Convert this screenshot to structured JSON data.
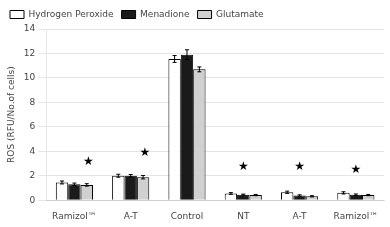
{
  "chart_data": {
    "type": "bar",
    "categories": [
      "Ramizol™",
      "A-T",
      "Control",
      "NT",
      "A-T",
      "Ramizol™"
    ],
    "series": [
      {
        "name": "Hydrogen Peroxide",
        "color": "white",
        "values": [
          1.45,
          2.0,
          11.55,
          0.55,
          0.65,
          0.6
        ],
        "errors": [
          0.12,
          0.12,
          0.28,
          0.07,
          0.09,
          0.09
        ]
      },
      {
        "name": "Menadione",
        "color": "#1a1a1a",
        "values": [
          1.3,
          2.0,
          11.9,
          0.45,
          0.38,
          0.45
        ],
        "errors": [
          0.1,
          0.1,
          0.4,
          0.05,
          0.06,
          0.06
        ]
      },
      {
        "name": "Glutamate",
        "color": "#d0d0d0",
        "values": [
          1.25,
          1.88,
          10.7,
          0.42,
          0.32,
          0.42
        ],
        "errors": [
          0.1,
          0.14,
          0.2,
          0.05,
          0.05,
          0.05
        ]
      }
    ],
    "ylabel": "ROS (RFU/No.of cells)",
    "ylim": [
      0,
      14
    ],
    "yticks": [
      0,
      2,
      4,
      6,
      8,
      10,
      12,
      14
    ],
    "grid": "y",
    "legend": "upper left",
    "annotations": [
      {
        "text": "★",
        "x": 0.25,
        "y": 3.1
      },
      {
        "text": "★",
        "x": 1.25,
        "y": 3.9
      },
      {
        "text": "★",
        "x": 3.0,
        "y": 2.7
      },
      {
        "text": "★",
        "x": 4.0,
        "y": 2.7
      },
      {
        "text": "★",
        "x": 5.0,
        "y": 2.5
      }
    ]
  }
}
